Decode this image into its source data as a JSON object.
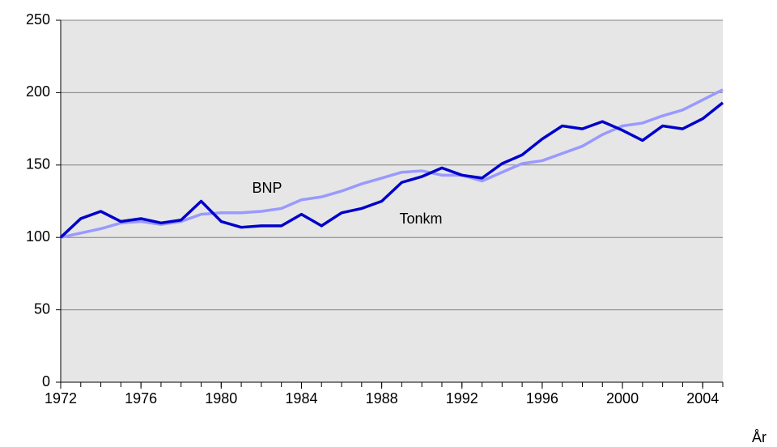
{
  "chart_data": {
    "type": "line",
    "x": [
      1972,
      1973,
      1974,
      1975,
      1976,
      1977,
      1978,
      1979,
      1980,
      1981,
      1982,
      1983,
      1984,
      1985,
      1986,
      1987,
      1988,
      1989,
      1990,
      1991,
      1992,
      1993,
      1994,
      1995,
      1996,
      1997,
      1998,
      1999,
      2000,
      2001,
      2002,
      2003,
      2004,
      2005
    ],
    "series": [
      {
        "name": "Tonkm",
        "color": "#0000cc",
        "values": [
          100,
          113,
          118,
          111,
          113,
          110,
          112,
          125,
          111,
          107,
          108,
          108,
          116,
          108,
          117,
          120,
          125,
          138,
          142,
          148,
          143,
          141,
          151,
          157,
          168,
          177,
          175,
          180,
          174,
          167,
          177,
          175,
          182,
          193
        ]
      },
      {
        "name": "BNP",
        "color": "#9999ff",
        "values": [
          100,
          103,
          106,
          110,
          111,
          109,
          111,
          116,
          117,
          117,
          118,
          120,
          126,
          128,
          132,
          137,
          141,
          145,
          146,
          143,
          143,
          139,
          145,
          151,
          153,
          158,
          163,
          171,
          177,
          179,
          184,
          188,
          195,
          202
        ]
      }
    ],
    "xlabel": "År",
    "xlim": [
      1972,
      2005
    ],
    "xticks": [
      1972,
      1976,
      1980,
      1984,
      1988,
      1992,
      1996,
      2000,
      2004
    ],
    "ylim": [
      0,
      250
    ],
    "yticks": [
      0,
      50,
      100,
      150,
      200,
      250
    ],
    "grid": true
  }
}
